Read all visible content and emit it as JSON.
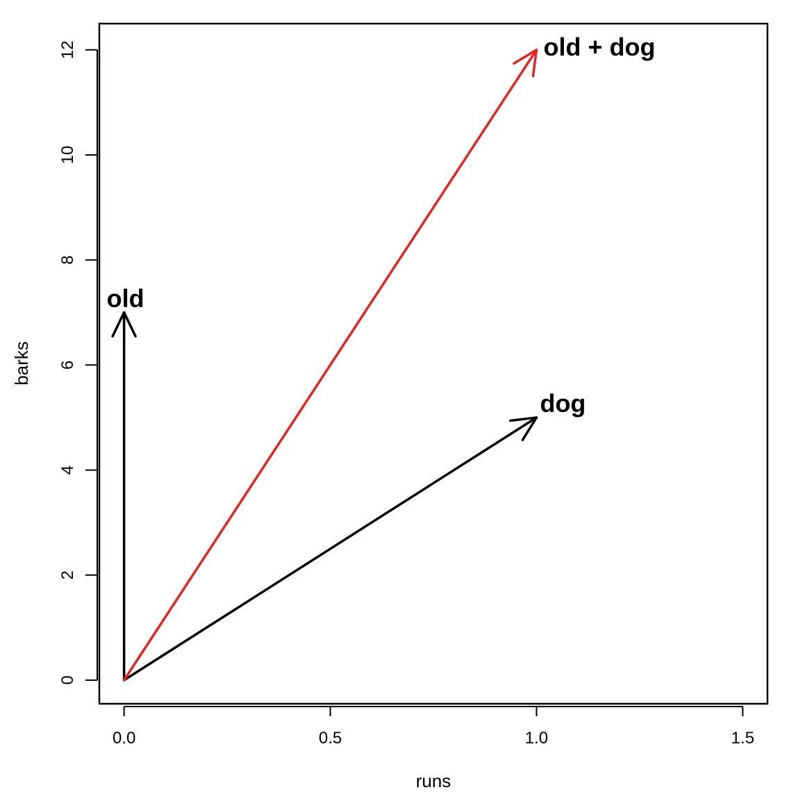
{
  "chart_data": {
    "type": "vector",
    "title": "",
    "xlabel": "runs",
    "ylabel": "barks",
    "xlim": [
      -0.06,
      1.56
    ],
    "ylim": [
      -0.45,
      12.5
    ],
    "xticks": [
      "0.0",
      "0.5",
      "1.0",
      "1.5"
    ],
    "xtick_values": [
      0,
      0.5,
      1.0,
      1.5
    ],
    "yticks": [
      "0",
      "2",
      "4",
      "6",
      "8",
      "10",
      "12"
    ],
    "ytick_values": [
      0,
      2,
      4,
      6,
      8,
      10,
      12
    ],
    "grid": false,
    "series": [
      {
        "name": "old",
        "from": [
          0,
          0
        ],
        "to": [
          0,
          7
        ],
        "color": "#000000"
      },
      {
        "name": "dog",
        "from": [
          0,
          0
        ],
        "to": [
          1,
          5
        ],
        "color": "#000000"
      },
      {
        "name": "old + dog",
        "from": [
          0,
          0
        ],
        "to": [
          1,
          12
        ],
        "color": "#e8231f"
      }
    ]
  }
}
